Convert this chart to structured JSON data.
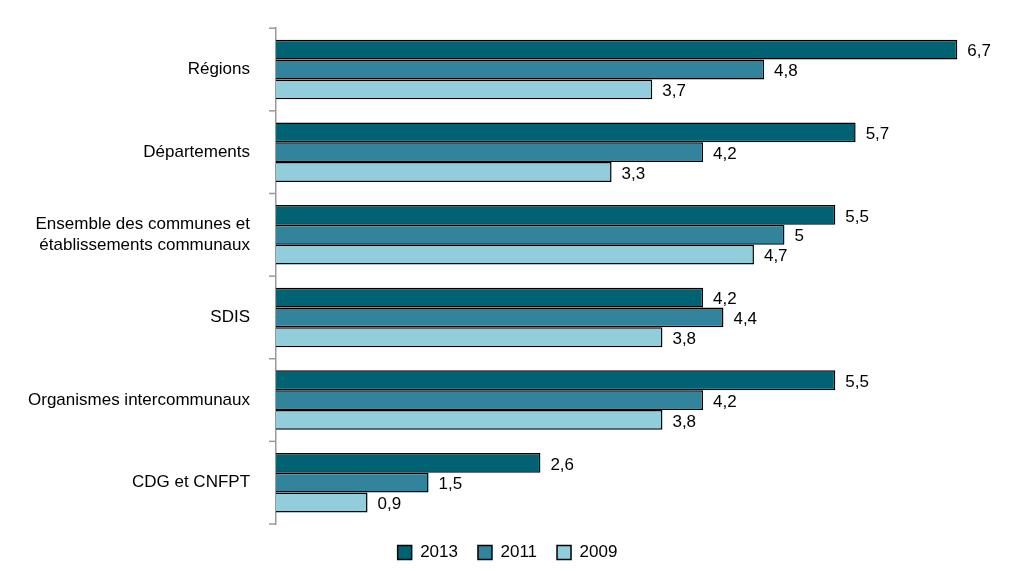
{
  "chart_data": {
    "type": "bar",
    "orientation": "horizontal",
    "legend": "bottom",
    "categories": [
      "Régions",
      "Départements",
      "Ensemble des communes et établissements communaux",
      "SDIS",
      "Organismes intercommunaux",
      "CDG et CNFPT"
    ],
    "series": [
      {
        "name": "2013",
        "color": "#006272",
        "values": [
          6.7,
          5.7,
          5.5,
          4.2,
          5.5,
          2.6
        ],
        "value_labels": [
          "6,7",
          "5,7",
          "5,5",
          "4,2",
          "5,5",
          "2,6"
        ]
      },
      {
        "name": "2011",
        "color": "#31849b",
        "values": [
          4.8,
          4.2,
          5,
          4.4,
          4.2,
          1.5
        ],
        "value_labels": [
          "4,8",
          "4,2",
          "5",
          "4,4",
          "4,2",
          "1,5"
        ]
      },
      {
        "name": "2009",
        "color": "#92cddc",
        "values": [
          3.7,
          3.3,
          4.7,
          3.8,
          3.8,
          0.9
        ],
        "value_labels": [
          "3,7",
          "3,3",
          "4,7",
          "3,8",
          "3,8",
          "0,9"
        ]
      }
    ]
  }
}
